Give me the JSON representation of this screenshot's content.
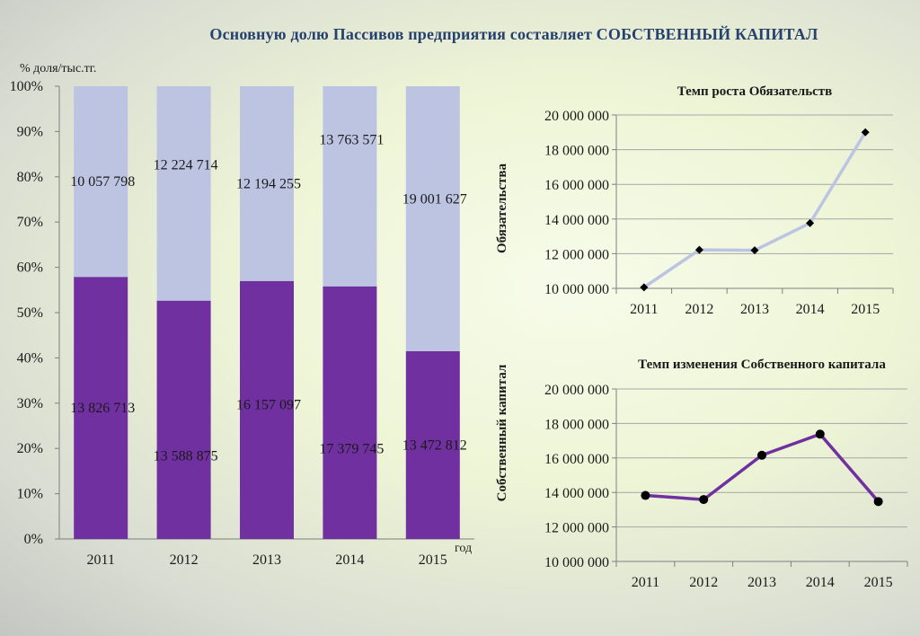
{
  "page": {
    "title": "Основную долю Пассивов предприятия составляет  СОБСТВЕННЫЙ КАПИТАЛ"
  },
  "colors": {
    "liabilities_bar": "#bcc4e2",
    "equity_bar": "#7030a0",
    "liabilities_line": "#bcc4e2",
    "equity_line": "#7030a0",
    "grid": "#a6a6a6"
  },
  "chart_data": [
    {
      "type": "bar",
      "stacked": "percent",
      "ylabel": "% доля/тыс.тг.",
      "xlabel": "год",
      "categories": [
        "2011",
        "2012",
        "2013",
        "2014",
        "2015"
      ],
      "y_ticks": [
        "0%",
        "10%",
        "20%",
        "30%",
        "40%",
        "50%",
        "60%",
        "70%",
        "80%",
        "90%",
        "100%"
      ],
      "ylim": [
        0,
        100
      ],
      "grid": false,
      "series": [
        {
          "key": "equity",
          "values": [
            13826713,
            13588875,
            16157097,
            17379745,
            13472812
          ],
          "labels": [
            "13 826 713",
            "13 588 875",
            "16 157 097",
            "17 379 745",
            "13 472 812"
          ]
        },
        {
          "key": "liabilities",
          "values": [
            10057798,
            12224714,
            12194255,
            13763571,
            19001627
          ],
          "labels": [
            "10 057 798",
            "12 224 714",
            "12 194 255",
            "13 763 571",
            "19 001 627"
          ]
        }
      ]
    },
    {
      "type": "line",
      "title": "Темп роста Обязательств",
      "ylabel": "Обязательства",
      "x": [
        "2011",
        "2012",
        "2013",
        "2014",
        "2015"
      ],
      "values": [
        10057798,
        12224714,
        12194255,
        13763571,
        19001627
      ],
      "ylim": [
        10000000,
        20000000
      ],
      "y_ticks": [
        "10 000 000",
        "12 000 000",
        "14 000 000",
        "16 000 000",
        "18 000 000",
        "20 000 000"
      ],
      "marker": "diamond",
      "grid": true
    },
    {
      "type": "line",
      "title": "Темп изменения Собственного капитала",
      "ylabel": "Собственный капитал",
      "x": [
        "2011",
        "2012",
        "2013",
        "2014",
        "2015"
      ],
      "values": [
        13826713,
        13588875,
        16157097,
        17379745,
        13472812
      ],
      "ylim": [
        10000000,
        20000000
      ],
      "y_ticks": [
        "10 000 000",
        "12 000 000",
        "14 000 000",
        "16 000 000",
        "18 000 000",
        "20 000 000"
      ],
      "marker": "circle",
      "grid": true
    }
  ]
}
